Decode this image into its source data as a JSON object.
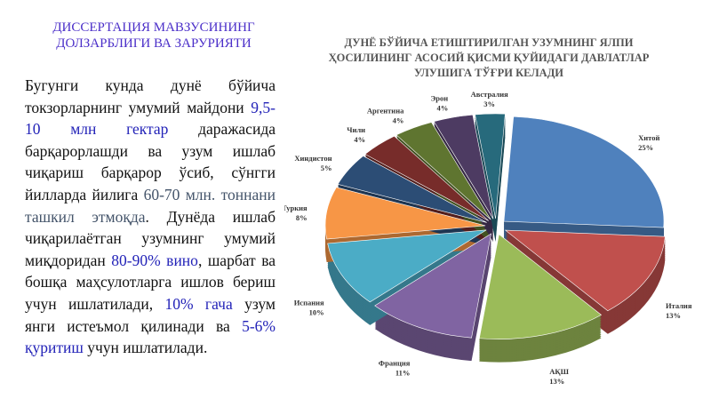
{
  "heading": "ДИССЕРТАЦИЯ МАВЗУСИНИНГ ДОЛЗАРБЛИГИ ВА ЗАРУРИЯТИ",
  "paragraph": [
    {
      "text": "Бугунги кунда дунё бўйича токзорларнинг умумий майдони ",
      "color": "#111111"
    },
    {
      "text": "9,5-10 млн гектар",
      "color": "#2323b8"
    },
    {
      "text": " даражасида барқарорлашди ва узум ишлаб чиқариш барқарор ўсиб, сўнгги йилларда йилига ",
      "color": "#111111"
    },
    {
      "text": "60-70 млн. тоннани ташкил этмоқда",
      "color": "#44546a"
    },
    {
      "text": ". Дунёда ишлаб чиқарилаётган узумнинг умумий миқдоридан ",
      "color": "#111111"
    },
    {
      "text": "80-90% вино",
      "color": "#2323b8"
    },
    {
      "text": ", шарбат ва бошқа маҳсулотларга ишлов бериш учун ишлатилади, ",
      "color": "#111111"
    },
    {
      "text": "10% гача",
      "color": "#2323b8"
    },
    {
      "text": " узум янги истеъмол қилинади ва ",
      "color": "#111111"
    },
    {
      "text": "5-6% қуритиш",
      "color": "#2323b8"
    },
    {
      "text": " учун ишлатилади.",
      "color": "#111111"
    }
  ],
  "chart_data": {
    "type": "pie",
    "title_lines": [
      "ДУНЁ БЎЙИЧА ЕТИШТИРИЛГАН УЗУМНИНГ ЯЛПИ",
      "ҲОСИЛИНИНГ АСОСИЙ ҚИСМИ ҚУЙИДАГИ ДАВЛАТЛАР",
      "УЛУШИГА ТЎҒРИ КЕЛАДИ"
    ],
    "categories": [
      "Хитой",
      "Италия",
      "АҚШ",
      "Франция",
      "Испания",
      "Туркия",
      "Хиндистон",
      "Чили",
      "Аргентина",
      "Эрон",
      "Австралия"
    ],
    "values": [
      25,
      13,
      13,
      11,
      10,
      8,
      5,
      4,
      4,
      4,
      3
    ],
    "value_labels": [
      "25%",
      "13%",
      "13%",
      "11%",
      "10%",
      "8%",
      "5%",
      "4%",
      "4%",
      "4%",
      "3%"
    ],
    "colors": [
      "#4f81bd",
      "#c0504d",
      "#9bbb59",
      "#8064a2",
      "#4bacc6",
      "#f79646",
      "#2c4d75",
      "#772c2a",
      "#5f7530",
      "#4d3b62",
      "#276a7c"
    ]
  }
}
